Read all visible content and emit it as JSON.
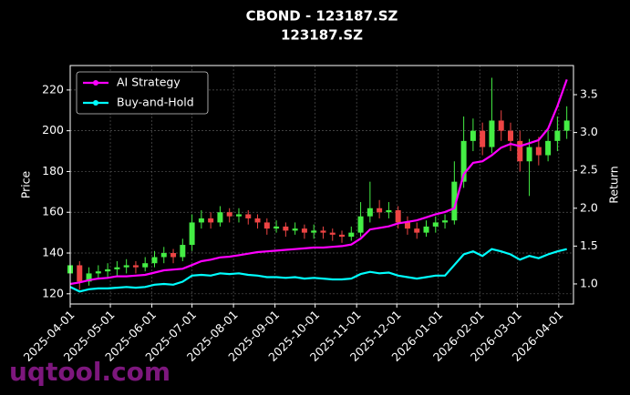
{
  "chart_data": {
    "type": "candlestick",
    "title": "CBOND - 123187.SZ",
    "subtitle": "123187.SZ",
    "ylabel": "Price",
    "y2label": "Return",
    "watermark": "uqtool.com",
    "grid": true,
    "legend_position": "upper-left",
    "up_color": "#44ee44",
    "down_color": "#ee4444",
    "x": [
      "2025-04-01",
      "2025-04-08",
      "2025-04-15",
      "2025-04-22",
      "2025-04-29",
      "2025-05-06",
      "2025-05-13",
      "2025-05-20",
      "2025-05-27",
      "2025-06-03",
      "2025-06-10",
      "2025-06-17",
      "2025-06-24",
      "2025-07-01",
      "2025-07-08",
      "2025-07-15",
      "2025-07-22",
      "2025-07-29",
      "2025-08-05",
      "2025-08-12",
      "2025-08-19",
      "2025-08-26",
      "2025-09-02",
      "2025-09-09",
      "2025-09-16",
      "2025-09-23",
      "2025-09-30",
      "2025-10-07",
      "2025-10-14",
      "2025-10-21",
      "2025-10-28",
      "2025-11-04",
      "2025-11-11",
      "2025-11-18",
      "2025-11-25",
      "2025-12-02",
      "2025-12-09",
      "2025-12-16",
      "2025-12-23",
      "2025-12-30",
      "2026-01-06",
      "2026-01-13",
      "2026-01-20",
      "2026-01-27",
      "2026-02-03",
      "2026-02-10",
      "2026-02-17",
      "2026-02-24",
      "2026-03-03",
      "2026-03-10",
      "2026-03-17",
      "2026-03-24",
      "2026-03-31",
      "2026-04-07"
    ],
    "open": [
      130,
      134,
      126,
      130,
      131,
      132,
      133,
      134,
      133,
      135,
      138,
      140,
      138,
      144,
      155,
      157,
      155,
      160,
      158,
      159,
      157,
      155,
      152,
      153,
      151,
      152,
      150,
      151,
      150,
      149,
      148,
      150,
      158,
      162,
      160,
      161,
      155,
      152,
      150,
      153,
      155,
      156,
      175,
      195,
      200,
      192,
      205,
      200,
      195,
      185,
      192,
      188,
      195,
      200
    ],
    "high": [
      137,
      136,
      133,
      134,
      135,
      136,
      137,
      136,
      138,
      141,
      143,
      142,
      147,
      159,
      161,
      160,
      163,
      162,
      162,
      161,
      159,
      157,
      156,
      155,
      155,
      154,
      154,
      153,
      152,
      151,
      153,
      165,
      175,
      166,
      165,
      163,
      158,
      155,
      156,
      158,
      159,
      185,
      207,
      206,
      204,
      226,
      210,
      204,
      200,
      196,
      197,
      200,
      207,
      212
    ],
    "low": [
      124,
      122,
      124,
      127,
      128,
      129,
      130,
      130,
      131,
      133,
      135,
      135,
      136,
      141,
      152,
      152,
      153,
      155,
      155,
      154,
      152,
      149,
      150,
      148,
      149,
      147,
      147,
      147,
      146,
      145,
      146,
      148,
      155,
      157,
      157,
      152,
      149,
      147,
      148,
      150,
      152,
      154,
      172,
      190,
      188,
      189,
      195,
      190,
      180,
      168,
      183,
      185,
      190,
      196
    ],
    "close": [
      134,
      126,
      130,
      131,
      132,
      133,
      134,
      133,
      135,
      138,
      140,
      138,
      144,
      155,
      157,
      155,
      160,
      158,
      159,
      157,
      155,
      152,
      153,
      151,
      152,
      150,
      151,
      150,
      149,
      148,
      150,
      158,
      162,
      160,
      161,
      155,
      152,
      150,
      153,
      155,
      156,
      175,
      195,
      200,
      192,
      205,
      200,
      195,
      185,
      192,
      188,
      195,
      200,
      205
    ],
    "series": [
      {
        "name": "AI Strategy",
        "color": "#ff00ff",
        "axis": "y2",
        "values": [
          1.0,
          1.02,
          1.05,
          1.07,
          1.08,
          1.1,
          1.1,
          1.11,
          1.12,
          1.15,
          1.18,
          1.19,
          1.2,
          1.25,
          1.3,
          1.32,
          1.35,
          1.36,
          1.38,
          1.4,
          1.42,
          1.43,
          1.44,
          1.45,
          1.46,
          1.47,
          1.48,
          1.48,
          1.49,
          1.5,
          1.52,
          1.6,
          1.72,
          1.74,
          1.76,
          1.8,
          1.82,
          1.84,
          1.88,
          1.92,
          1.95,
          2.0,
          2.45,
          2.6,
          2.62,
          2.7,
          2.8,
          2.85,
          2.82,
          2.86,
          2.9,
          3.05,
          3.35,
          3.7
        ]
      },
      {
        "name": "Buy-and-Hold",
        "color": "#00ffff",
        "axis": "y2",
        "values": [
          0.96,
          0.9,
          0.93,
          0.94,
          0.94,
          0.95,
          0.96,
          0.95,
          0.96,
          0.99,
          1.0,
          0.99,
          1.03,
          1.11,
          1.12,
          1.11,
          1.14,
          1.13,
          1.14,
          1.12,
          1.11,
          1.09,
          1.09,
          1.08,
          1.09,
          1.07,
          1.08,
          1.07,
          1.06,
          1.06,
          1.07,
          1.13,
          1.16,
          1.14,
          1.15,
          1.11,
          1.09,
          1.07,
          1.09,
          1.11,
          1.11,
          1.25,
          1.39,
          1.43,
          1.37,
          1.46,
          1.43,
          1.39,
          1.32,
          1.37,
          1.34,
          1.39,
          1.43,
          1.46
        ]
      }
    ],
    "xlim": [
      "2025-04-01",
      "2026-04-12"
    ],
    "xticks": [
      "2025-04-01",
      "2025-05-01",
      "2025-06-01",
      "2025-07-01",
      "2025-08-01",
      "2025-09-01",
      "2025-10-01",
      "2025-11-01",
      "2025-12-01",
      "2026-01-01",
      "2026-02-01",
      "2026-03-01",
      "2026-04-01"
    ],
    "ylim": [
      115,
      232
    ],
    "yticks": [
      120,
      140,
      160,
      180,
      200,
      220
    ],
    "y2lim": [
      0.735,
      3.885
    ],
    "y2ticks": [
      {
        "value": 1,
        "label": "1.0"
      },
      1.5,
      {
        "value": 2,
        "label": "2.0"
      },
      2.5,
      {
        "value": 3,
        "label": "3.0"
      },
      3.5
    ]
  }
}
